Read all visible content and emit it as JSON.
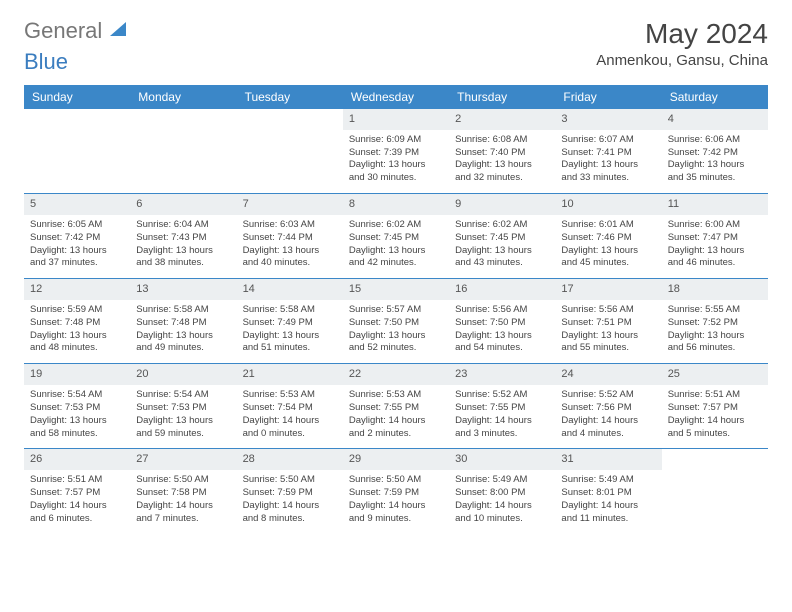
{
  "brand": {
    "general": "General",
    "blue": "Blue"
  },
  "title": "May 2024",
  "location": "Anmenkou, Gansu, China",
  "colors": {
    "header_bg": "#3b87c8",
    "header_text": "#ffffff",
    "daynum_bg": "#eceff1",
    "border": "#3b87c8"
  },
  "days": [
    "Sunday",
    "Monday",
    "Tuesday",
    "Wednesday",
    "Thursday",
    "Friday",
    "Saturday"
  ],
  "weeks": [
    [
      {
        "n": "",
        "sr": "",
        "ss": "",
        "dl": ""
      },
      {
        "n": "",
        "sr": "",
        "ss": "",
        "dl": ""
      },
      {
        "n": "",
        "sr": "",
        "ss": "",
        "dl": ""
      },
      {
        "n": "1",
        "sr": "6:09 AM",
        "ss": "7:39 PM",
        "dl": "13 hours and 30 minutes."
      },
      {
        "n": "2",
        "sr": "6:08 AM",
        "ss": "7:40 PM",
        "dl": "13 hours and 32 minutes."
      },
      {
        "n": "3",
        "sr": "6:07 AM",
        "ss": "7:41 PM",
        "dl": "13 hours and 33 minutes."
      },
      {
        "n": "4",
        "sr": "6:06 AM",
        "ss": "7:42 PM",
        "dl": "13 hours and 35 minutes."
      }
    ],
    [
      {
        "n": "5",
        "sr": "6:05 AM",
        "ss": "7:42 PM",
        "dl": "13 hours and 37 minutes."
      },
      {
        "n": "6",
        "sr": "6:04 AM",
        "ss": "7:43 PM",
        "dl": "13 hours and 38 minutes."
      },
      {
        "n": "7",
        "sr": "6:03 AM",
        "ss": "7:44 PM",
        "dl": "13 hours and 40 minutes."
      },
      {
        "n": "8",
        "sr": "6:02 AM",
        "ss": "7:45 PM",
        "dl": "13 hours and 42 minutes."
      },
      {
        "n": "9",
        "sr": "6:02 AM",
        "ss": "7:45 PM",
        "dl": "13 hours and 43 minutes."
      },
      {
        "n": "10",
        "sr": "6:01 AM",
        "ss": "7:46 PM",
        "dl": "13 hours and 45 minutes."
      },
      {
        "n": "11",
        "sr": "6:00 AM",
        "ss": "7:47 PM",
        "dl": "13 hours and 46 minutes."
      }
    ],
    [
      {
        "n": "12",
        "sr": "5:59 AM",
        "ss": "7:48 PM",
        "dl": "13 hours and 48 minutes."
      },
      {
        "n": "13",
        "sr": "5:58 AM",
        "ss": "7:48 PM",
        "dl": "13 hours and 49 minutes."
      },
      {
        "n": "14",
        "sr": "5:58 AM",
        "ss": "7:49 PM",
        "dl": "13 hours and 51 minutes."
      },
      {
        "n": "15",
        "sr": "5:57 AM",
        "ss": "7:50 PM",
        "dl": "13 hours and 52 minutes."
      },
      {
        "n": "16",
        "sr": "5:56 AM",
        "ss": "7:50 PM",
        "dl": "13 hours and 54 minutes."
      },
      {
        "n": "17",
        "sr": "5:56 AM",
        "ss": "7:51 PM",
        "dl": "13 hours and 55 minutes."
      },
      {
        "n": "18",
        "sr": "5:55 AM",
        "ss": "7:52 PM",
        "dl": "13 hours and 56 minutes."
      }
    ],
    [
      {
        "n": "19",
        "sr": "5:54 AM",
        "ss": "7:53 PM",
        "dl": "13 hours and 58 minutes."
      },
      {
        "n": "20",
        "sr": "5:54 AM",
        "ss": "7:53 PM",
        "dl": "13 hours and 59 minutes."
      },
      {
        "n": "21",
        "sr": "5:53 AM",
        "ss": "7:54 PM",
        "dl": "14 hours and 0 minutes."
      },
      {
        "n": "22",
        "sr": "5:53 AM",
        "ss": "7:55 PM",
        "dl": "14 hours and 2 minutes."
      },
      {
        "n": "23",
        "sr": "5:52 AM",
        "ss": "7:55 PM",
        "dl": "14 hours and 3 minutes."
      },
      {
        "n": "24",
        "sr": "5:52 AM",
        "ss": "7:56 PM",
        "dl": "14 hours and 4 minutes."
      },
      {
        "n": "25",
        "sr": "5:51 AM",
        "ss": "7:57 PM",
        "dl": "14 hours and 5 minutes."
      }
    ],
    [
      {
        "n": "26",
        "sr": "5:51 AM",
        "ss": "7:57 PM",
        "dl": "14 hours and 6 minutes."
      },
      {
        "n": "27",
        "sr": "5:50 AM",
        "ss": "7:58 PM",
        "dl": "14 hours and 7 minutes."
      },
      {
        "n": "28",
        "sr": "5:50 AM",
        "ss": "7:59 PM",
        "dl": "14 hours and 8 minutes."
      },
      {
        "n": "29",
        "sr": "5:50 AM",
        "ss": "7:59 PM",
        "dl": "14 hours and 9 minutes."
      },
      {
        "n": "30",
        "sr": "5:49 AM",
        "ss": "8:00 PM",
        "dl": "14 hours and 10 minutes."
      },
      {
        "n": "31",
        "sr": "5:49 AM",
        "ss": "8:01 PM",
        "dl": "14 hours and 11 minutes."
      },
      {
        "n": "",
        "sr": "",
        "ss": "",
        "dl": ""
      }
    ]
  ],
  "labels": {
    "sunrise": "Sunrise:",
    "sunset": "Sunset:",
    "daylight": "Daylight:"
  }
}
